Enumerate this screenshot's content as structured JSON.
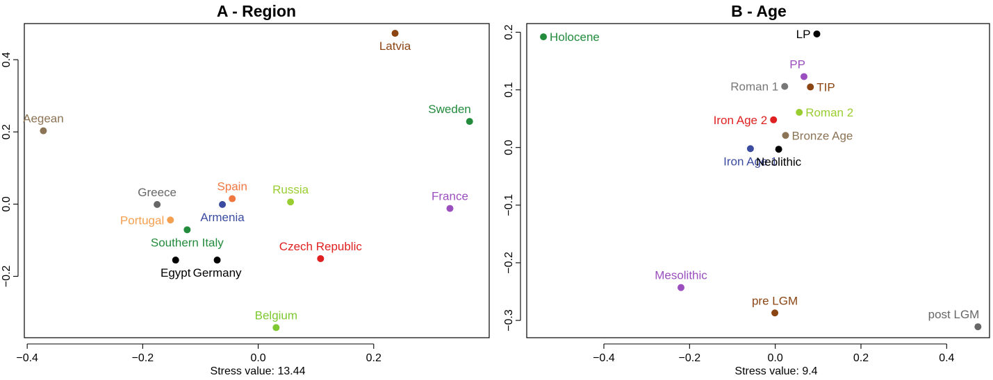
{
  "chart_data": [
    {
      "type": "scatter",
      "title": "A - Region",
      "xlabel": "Stress value: 13.44",
      "ylabel": "",
      "xlim": [
        -0.405,
        0.4
      ],
      "ylim": [
        -0.37,
        0.5
      ],
      "xticks": [
        -0.4,
        -0.2,
        0.0,
        0.2
      ],
      "xtick_labels": [
        "−0.4",
        "−0.2",
        "0.0",
        "0.2"
      ],
      "yticks": [
        0.4,
        0.2,
        0.0,
        -0.2
      ],
      "ytick_labels": [
        "0.4",
        "0.2",
        "0.0",
        "−0.2"
      ],
      "grid": false,
      "points": [
        {
          "label": "Latvia",
          "x": 0.237,
          "y": 0.473,
          "color": "#8B4513",
          "pos": "below"
        },
        {
          "label": "Aegean",
          "x": -0.372,
          "y": 0.203,
          "color": "#8B7355",
          "pos": "above"
        },
        {
          "label": "Sweden",
          "x": 0.366,
          "y": 0.229,
          "color": "#228B3C",
          "pos": "above-left"
        },
        {
          "label": "Greece",
          "x": -0.175,
          "y": -0.001,
          "color": "#666666",
          "pos": "above"
        },
        {
          "label": "Spain",
          "x": -0.045,
          "y": 0.015,
          "color": "#F07840",
          "pos": "above"
        },
        {
          "label": "Russia",
          "x": 0.056,
          "y": 0.006,
          "color": "#9ACD32",
          "pos": "above"
        },
        {
          "label": "France",
          "x": 0.332,
          "y": -0.012,
          "color": "#9B4FBF",
          "pos": "above"
        },
        {
          "label": "Armenia",
          "x": -0.062,
          "y": -0.001,
          "color": "#3B4BA0",
          "pos": "below"
        },
        {
          "label": "Portugal",
          "x": -0.152,
          "y": -0.044,
          "color": "#F4A050",
          "pos": "left"
        },
        {
          "label": "Southern Italy",
          "x": -0.123,
          "y": -0.071,
          "color": "#228B3C",
          "pos": "below"
        },
        {
          "label": "Czech Republic",
          "x": 0.108,
          "y": -0.151,
          "color": "#E02020",
          "pos": "above"
        },
        {
          "label": "Egypt",
          "x": -0.143,
          "y": -0.155,
          "color": "#000000",
          "pos": "below"
        },
        {
          "label": "Germany",
          "x": -0.071,
          "y": -0.155,
          "color": "#000000",
          "pos": "below"
        },
        {
          "label": "Belgium",
          "x": 0.031,
          "y": -0.342,
          "color": "#7EC832",
          "pos": "above"
        }
      ]
    },
    {
      "type": "scatter",
      "title": "B - Age",
      "xlabel": "Stress value: 9.4",
      "ylabel": "",
      "xlim": [
        -0.58,
        0.5
      ],
      "ylim": [
        -0.33,
        0.215
      ],
      "xticks": [
        -0.4,
        -0.2,
        0.0,
        0.2,
        0.4
      ],
      "xtick_labels": [
        "−0.4",
        "−0.2",
        "0.0",
        "0.2",
        "0.4"
      ],
      "yticks": [
        0.2,
        0.1,
        0.0,
        -0.1,
        -0.2,
        -0.3
      ],
      "ytick_labels": [
        "0.2",
        "0.1",
        "0.0",
        "−0.1",
        "−0.2",
        "−0.3"
      ],
      "grid": false,
      "points": [
        {
          "label": "Holocene",
          "x": -0.541,
          "y": 0.192,
          "color": "#228B3C",
          "pos": "right"
        },
        {
          "label": "LP",
          "x": 0.097,
          "y": 0.197,
          "color": "#000000",
          "pos": "left"
        },
        {
          "label": "PP",
          "x": 0.067,
          "y": 0.123,
          "color": "#9B4FBF",
          "pos": "above-left"
        },
        {
          "label": "Roman 1",
          "x": 0.022,
          "y": 0.106,
          "color": "#777777",
          "pos": "left"
        },
        {
          "label": "TIP",
          "x": 0.082,
          "y": 0.105,
          "color": "#8B4513",
          "pos": "right"
        },
        {
          "label": "Roman 2",
          "x": 0.056,
          "y": 0.061,
          "color": "#9ACD32",
          "pos": "right"
        },
        {
          "label": "Iron Age 2",
          "x": -0.004,
          "y": 0.048,
          "color": "#E02020",
          "pos": "left"
        },
        {
          "label": "Bronze Age",
          "x": 0.024,
          "y": 0.021,
          "color": "#8B7355",
          "pos": "right"
        },
        {
          "label": "Iron Age 1",
          "x": -0.058,
          "y": -0.002,
          "color": "#3B4BA0",
          "pos": "below"
        },
        {
          "label": "Neolithic",
          "x": 0.008,
          "y": -0.003,
          "color": "#000000",
          "pos": "below"
        },
        {
          "label": "Mesolithic",
          "x": -0.22,
          "y": -0.243,
          "color": "#9B4FBF",
          "pos": "above"
        },
        {
          "label": "pre LGM",
          "x": -0.001,
          "y": -0.287,
          "color": "#8B4513",
          "pos": "above"
        },
        {
          "label": "post LGM",
          "x": 0.473,
          "y": -0.311,
          "color": "#666666",
          "pos": "above-left"
        }
      ]
    }
  ]
}
